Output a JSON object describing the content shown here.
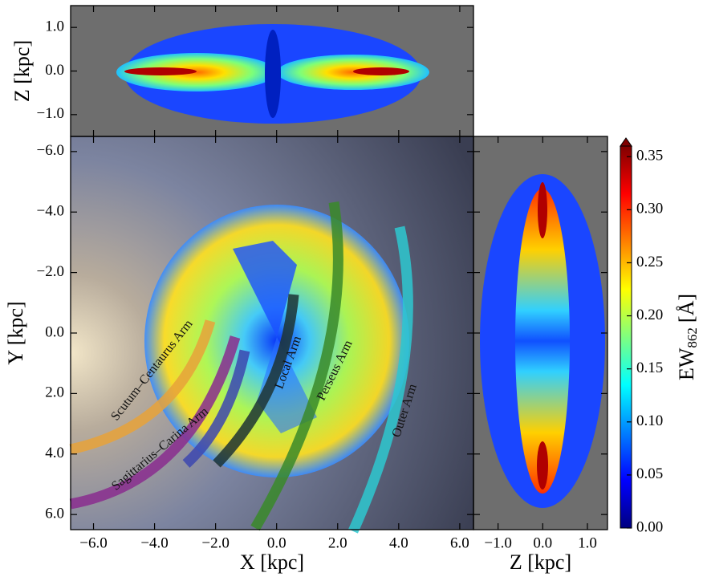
{
  "chart_data": [
    {
      "type": "heatmap",
      "panel": "top",
      "xlim": [
        -6.75,
        6.45
      ],
      "ylim": [
        -1.5,
        1.5
      ],
      "yticks": [
        {
          "value": 1.0,
          "label": "1.0"
        },
        {
          "value": 0.0,
          "label": "0.0"
        },
        {
          "value": -1.0,
          "label": "−1.0"
        }
      ],
      "ylabel": "Z [kpc]"
    },
    {
      "type": "heatmap",
      "panel": "main",
      "xlim": [
        -6.75,
        6.45
      ],
      "ylim": [
        6.5,
        -6.5
      ],
      "xticks": [
        {
          "value": -6,
          "label": "−6.0"
        },
        {
          "value": -4,
          "label": "−4.0"
        },
        {
          "value": -2,
          "label": "−2.0"
        },
        {
          "value": 0,
          "label": "0.0"
        },
        {
          "value": 2,
          "label": "2.0"
        },
        {
          "value": 4,
          "label": "4.0"
        },
        {
          "value": 6,
          "label": "6.0"
        }
      ],
      "yticks": [
        {
          "value": -6,
          "label": "−6.0"
        },
        {
          "value": -4,
          "label": "−4.0"
        },
        {
          "value": -2,
          "label": "−2.0"
        },
        {
          "value": 0,
          "label": "0.0"
        },
        {
          "value": 2,
          "label": "2.0"
        },
        {
          "value": 4,
          "label": "4.0"
        },
        {
          "value": 6,
          "label": "6.0"
        }
      ],
      "xlabel": "X [kpc]",
      "ylabel": "Y [kpc]",
      "annotations": [
        "Scutum–Centaurus Arm",
        "Sagittarius–Carina Arm",
        "Local Arm",
        "Perseus Arm",
        "Outer Arm"
      ]
    },
    {
      "type": "heatmap",
      "panel": "right",
      "xlim": [
        -1.55,
        1.45
      ],
      "ylim": [
        6.5,
        -6.5
      ],
      "xticks": [
        {
          "value": -1.0,
          "label": "−1.0"
        },
        {
          "value": 0.0,
          "label": "0.0"
        },
        {
          "value": 1.0,
          "label": "1.0"
        }
      ],
      "xlabel": "Z [kpc]"
    },
    {
      "type": "colorbar",
      "colormap": "jet",
      "extend": "max",
      "lim": [
        0,
        0.36
      ],
      "ticks": [
        {
          "value": 0,
          "label": "0.00"
        },
        {
          "value": 0.05,
          "label": "0.05"
        },
        {
          "value": 0.1,
          "label": "0.10"
        },
        {
          "value": 0.15,
          "label": "0.15"
        },
        {
          "value": 0.2,
          "label": "0.20"
        },
        {
          "value": 0.25,
          "label": "0.25"
        },
        {
          "value": 0.3,
          "label": "0.30"
        },
        {
          "value": 0.35,
          "label": "0.35"
        }
      ],
      "label": {
        "text": "EW",
        "sub": "862",
        "unit": "[Å]"
      }
    }
  ]
}
